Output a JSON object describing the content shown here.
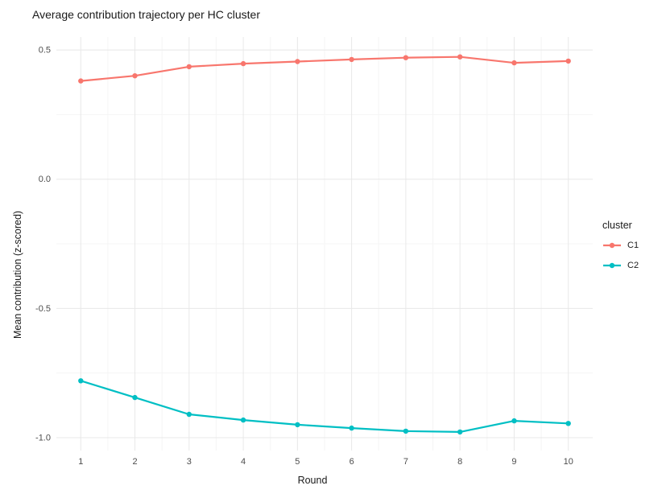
{
  "chart_data": {
    "type": "line",
    "title": "Average contribution trajectory per HC cluster",
    "xlabel": "Round",
    "ylabel": "Mean contribution (z-scored)",
    "legend_title": "cluster",
    "legend_position": "right",
    "grid": true,
    "grid_color": "#e8e8e8",
    "grid_minor_color": "#f5f5f5",
    "tick_label_color": "#4d4d4d",
    "x": [
      1,
      2,
      3,
      4,
      5,
      6,
      7,
      8,
      9,
      10
    ],
    "x_ticks": [
      1,
      2,
      3,
      4,
      5,
      6,
      7,
      8,
      9,
      10
    ],
    "x_minor_ticks": [
      1.5,
      2.5,
      3.5,
      4.5,
      5.5,
      6.5,
      7.5,
      8.5,
      9.5
    ],
    "y_ticks": [
      0.5,
      0.0,
      -0.5,
      -1.0
    ],
    "y_minor_ticks": [
      0.25,
      -0.25,
      -0.75
    ],
    "xlim": [
      0.55,
      10.45
    ],
    "ylim": [
      -1.05,
      0.55
    ],
    "series": [
      {
        "name": "C1",
        "color": "#F8766D",
        "values": [
          0.38,
          0.4,
          0.435,
          0.447,
          0.455,
          0.463,
          0.47,
          0.473,
          0.45,
          0.457
        ]
      },
      {
        "name": "C2",
        "color": "#00BFC4",
        "values": [
          -0.78,
          -0.845,
          -0.91,
          -0.932,
          -0.95,
          -0.963,
          -0.975,
          -0.978,
          -0.935,
          -0.945
        ]
      }
    ]
  }
}
